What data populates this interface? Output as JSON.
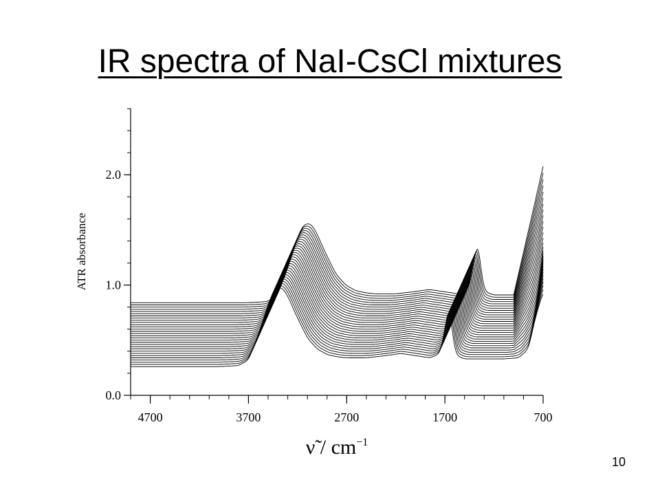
{
  "slide": {
    "title": "IR spectra of NaI-CsCl mixtures",
    "page_number": "10"
  },
  "chart_data": {
    "type": "line",
    "title": "",
    "ylabel": "ATR absorbance",
    "xlabel_symbol": "ν̃",
    "xlabel_unit": " / cm",
    "xlabel_exponent": "−1",
    "xlim": [
      4900,
      700
    ],
    "x_reversed": true,
    "ylim": [
      0.0,
      2.6
    ],
    "x_ticks": [
      "4700",
      "3700",
      "2700",
      "1700",
      "700"
    ],
    "x_tick_values": [
      4700,
      3700,
      2700,
      1700,
      700
    ],
    "y_ticks": [
      "0.0",
      "1.0",
      "2.0"
    ],
    "y_tick_values": [
      0.0,
      1.0,
      2.0
    ],
    "grid": false,
    "legend": "none",
    "series_count": 30,
    "stacking_offset_per_series": 0.02,
    "x_shift_per_series_cm-1": 10,
    "line_color": "#000000",
    "base_series": {
      "x": [
        4900,
        4600,
        4300,
        4000,
        3800,
        3700,
        3600,
        3500,
        3450,
        3400,
        3350,
        3300,
        3200,
        3100,
        3000,
        2900,
        2800,
        2700,
        2500,
        2300,
        2150,
        2000,
        1850,
        1750,
        1700,
        1660,
        1640,
        1620,
        1580,
        1500,
        1300,
        1100,
        950,
        850,
        780,
        700
      ],
      "y": [
        0.26,
        0.26,
        0.26,
        0.26,
        0.27,
        0.32,
        0.55,
        0.82,
        0.94,
        0.98,
        0.97,
        0.9,
        0.7,
        0.52,
        0.42,
        0.37,
        0.35,
        0.34,
        0.34,
        0.36,
        0.38,
        0.36,
        0.34,
        0.38,
        0.6,
        0.82,
        0.76,
        0.5,
        0.36,
        0.33,
        0.33,
        0.33,
        0.34,
        0.42,
        0.7,
        0.94
      ]
    }
  }
}
